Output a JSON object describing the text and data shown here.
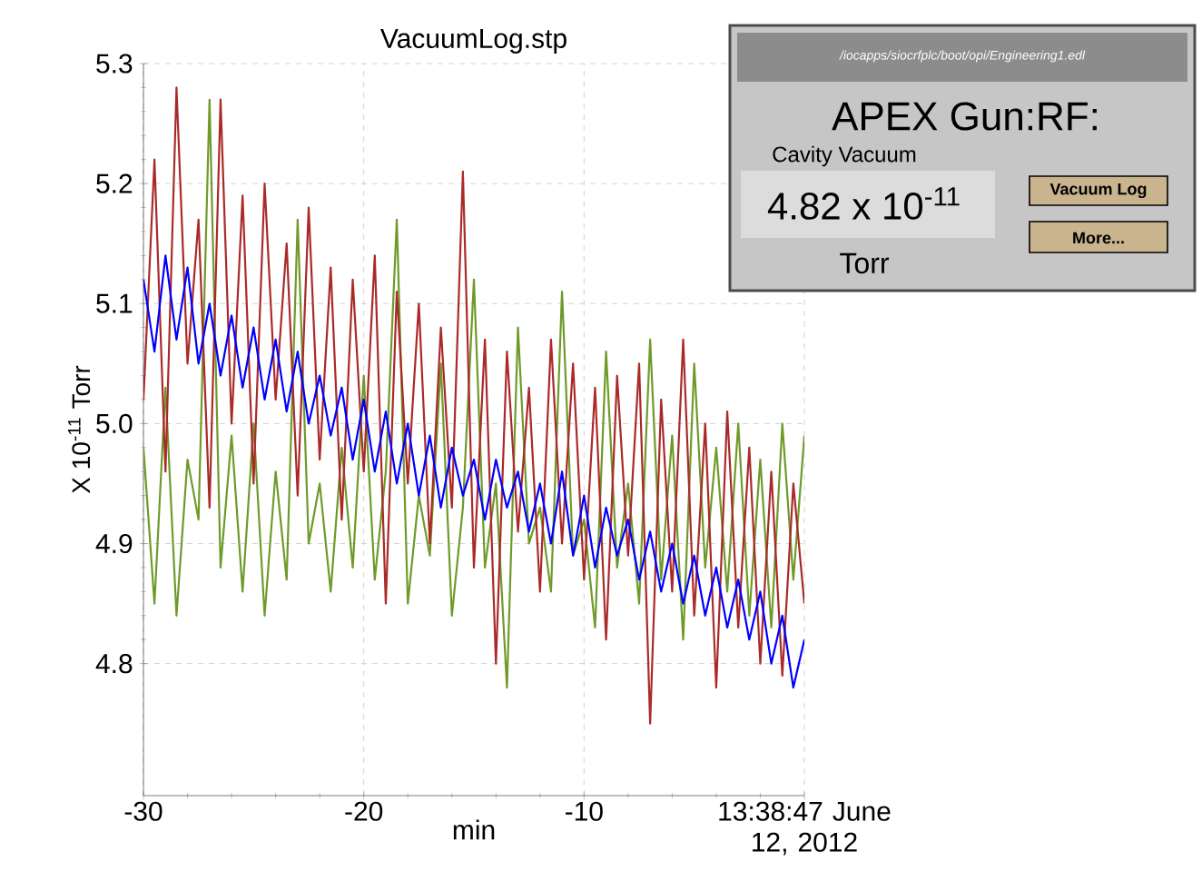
{
  "chart_data": {
    "type": "line",
    "title": "VacuumLog.stp",
    "xlabel": "min",
    "ylabel": "X 10$^{-11}$ Torr",
    "x": [
      -30,
      -29.5,
      -29,
      -28.5,
      -28,
      -27.5,
      -27,
      -26.5,
      -26,
      -25.5,
      -25,
      -24.5,
      -24,
      -23.5,
      -23,
      -22.5,
      -22,
      -21.5,
      -21,
      -20.5,
      -20,
      -19.5,
      -19,
      -18.5,
      -18,
      -17.5,
      -17,
      -16.5,
      -16,
      -15.5,
      -15,
      -14.5,
      -14,
      -13.5,
      -13,
      -12.5,
      -12,
      -11.5,
      -11,
      -10.5,
      -10,
      -9.5,
      -9,
      -8.5,
      -8,
      -7.5,
      -7,
      -6.5,
      -6,
      -5.5,
      -5,
      -4.5,
      -4,
      -3.5,
      -3,
      -2.5,
      -2,
      -1.5,
      -1,
      -0.5,
      0
    ],
    "series": [
      {
        "color": "#6f9a2a",
        "values": [
          4.98,
          4.85,
          5.03,
          4.84,
          4.97,
          4.92,
          5.27,
          4.88,
          4.99,
          4.86,
          5.0,
          4.84,
          4.96,
          4.87,
          5.17,
          4.9,
          4.95,
          4.86,
          4.98,
          4.88,
          5.04,
          4.87,
          4.96,
          5.17,
          4.85,
          4.94,
          4.89,
          5.05,
          4.84,
          4.93,
          5.12,
          4.88,
          4.95,
          4.78,
          5.08,
          4.9,
          4.93,
          4.86,
          5.11,
          4.89,
          4.92,
          4.83,
          5.06,
          4.88,
          4.95,
          4.85,
          5.07,
          4.87,
          4.99,
          4.82,
          5.05,
          4.88,
          4.98,
          4.86,
          5.0,
          4.84,
          4.97,
          4.83,
          5.0,
          4.87,
          4.99
        ]
      },
      {
        "color": "#aa2a2a",
        "values": [
          5.02,
          5.22,
          4.96,
          5.28,
          5.05,
          5.17,
          4.93,
          5.27,
          5.0,
          5.19,
          4.95,
          5.2,
          5.02,
          5.15,
          4.94,
          5.18,
          4.97,
          5.13,
          4.92,
          5.12,
          4.96,
          5.14,
          4.85,
          5.11,
          4.95,
          5.1,
          4.9,
          5.08,
          4.93,
          5.21,
          4.88,
          5.07,
          4.8,
          5.06,
          4.91,
          5.03,
          4.86,
          5.07,
          4.9,
          5.05,
          4.87,
          5.03,
          4.82,
          5.04,
          4.89,
          5.05,
          4.75,
          5.02,
          4.86,
          5.07,
          4.84,
          5.0,
          4.78,
          5.01,
          4.83,
          4.98,
          4.8,
          4.96,
          4.79,
          4.95,
          4.85
        ]
      },
      {
        "color": "#0000ff",
        "values": [
          5.12,
          5.06,
          5.14,
          5.07,
          5.13,
          5.05,
          5.1,
          5.04,
          5.09,
          5.03,
          5.08,
          5.02,
          5.07,
          5.01,
          5.06,
          5.0,
          5.04,
          4.99,
          5.03,
          4.97,
          5.02,
          4.96,
          5.01,
          4.95,
          5.0,
          4.94,
          4.99,
          4.93,
          4.98,
          4.94,
          4.97,
          4.92,
          4.97,
          4.93,
          4.96,
          4.91,
          4.95,
          4.9,
          4.96,
          4.89,
          4.94,
          4.88,
          4.93,
          4.89,
          4.92,
          4.87,
          4.91,
          4.86,
          4.9,
          4.85,
          4.89,
          4.84,
          4.88,
          4.83,
          4.87,
          4.82,
          4.86,
          4.8,
          4.84,
          4.78,
          4.82
        ]
      }
    ],
    "xlim": [
      -30,
      0
    ],
    "xticks": [
      -30,
      -20,
      -10,
      {
        "value": 0,
        "label": "13:38:47 June 12, 2012"
      }
    ],
    "ylim": [
      4.69,
      5.3
    ],
    "yticks": [
      4.8,
      4.9,
      {
        "value": 5,
        "label": "5.0"
      },
      5.1,
      5.2,
      5.3
    ],
    "grid": true,
    "line_style": "solid",
    "annotations": [
      "/iocapps/siocrfplc/boot/opi/Engineering1.edl",
      "APEX Gun:RF:",
      "Cavity Vacuum",
      "4.82 x 10$^{-11}$",
      "Torr",
      "Vacuum Log",
      "More..."
    ]
  }
}
